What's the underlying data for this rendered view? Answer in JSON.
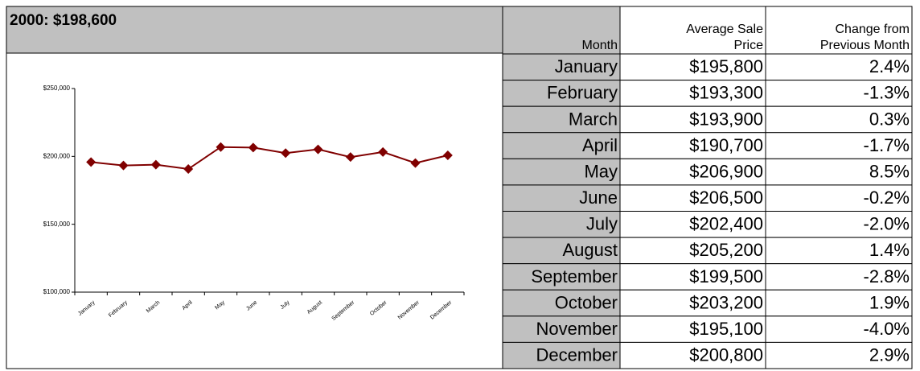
{
  "chart_data": {
    "type": "line",
    "title": "2000: $198,600",
    "categories": [
      "January",
      "February",
      "March",
      "April",
      "May",
      "June",
      "July",
      "August",
      "September",
      "October",
      "November",
      "December"
    ],
    "series": [
      {
        "name": "Average Sale Price",
        "color": "#800000",
        "values": [
          195800,
          193300,
          193900,
          190700,
          206900,
          206500,
          202400,
          205200,
          199500,
          203200,
          195100,
          200800
        ]
      }
    ],
    "ylim": [
      100000,
      250000
    ],
    "yticks": [
      {
        "value": 100000,
        "label": "$100,000"
      },
      {
        "value": 150000,
        "label": "$150,000"
      },
      {
        "value": 200000,
        "label": "$200,000"
      },
      {
        "value": 250000,
        "label": "$250,000"
      }
    ]
  },
  "table": {
    "headers": [
      [
        "Month"
      ],
      [
        "Average Sale",
        "Price"
      ],
      [
        "Change from",
        "Previous Month"
      ]
    ],
    "rows": [
      [
        "January",
        "$195,800",
        "2.4%"
      ],
      [
        "February",
        "$193,300",
        "-1.3%"
      ],
      [
        "March",
        "$193,900",
        "0.3%"
      ],
      [
        "April",
        "$190,700",
        "-1.7%"
      ],
      [
        "May",
        "$206,900",
        "8.5%"
      ],
      [
        "June",
        "$206,500",
        "-0.2%"
      ],
      [
        "July",
        "$202,400",
        "-2.0%"
      ],
      [
        "August",
        "$205,200",
        "1.4%"
      ],
      [
        "September",
        "$199,500",
        "-2.8%"
      ],
      [
        "October",
        "$203,200",
        "1.9%"
      ],
      [
        "November",
        "$195,100",
        "-4.0%"
      ],
      [
        "December",
        "$200,800",
        "2.9%"
      ]
    ]
  }
}
